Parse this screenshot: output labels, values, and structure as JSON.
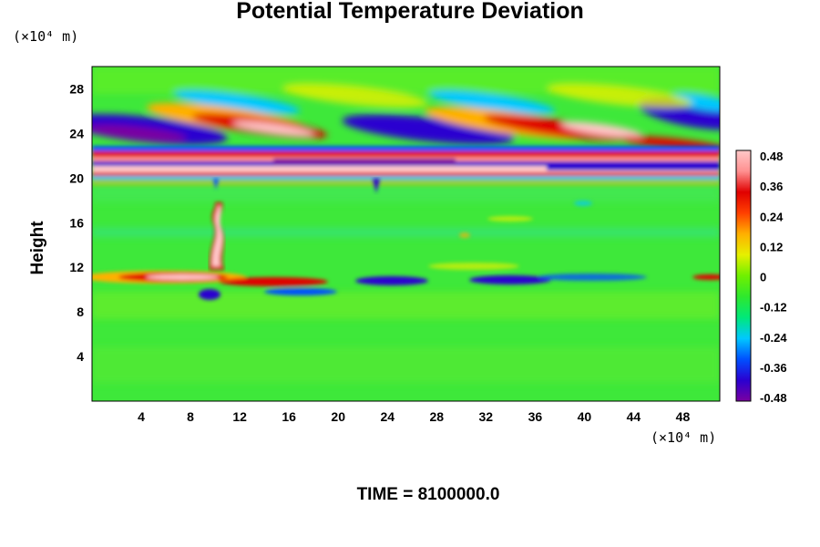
{
  "chart_data": {
    "type": "heatmap",
    "title": "Potential Temperature Deviation",
    "ylabel": "Height",
    "xlabel": "",
    "x_unit": "(×10⁴ m)",
    "y_unit": "(×10⁴ m)",
    "xlim": [
      0,
      51
    ],
    "ylim": [
      0,
      30
    ],
    "x_ticks": [
      "4",
      "8",
      "12",
      "16",
      "20",
      "24",
      "28",
      "32",
      "36",
      "40",
      "44",
      "48"
    ],
    "x_tick_values": [
      4,
      8,
      12,
      16,
      20,
      24,
      28,
      32,
      36,
      40,
      44,
      48
    ],
    "y_ticks": [
      "4",
      "8",
      "12",
      "16",
      "20",
      "24",
      "28"
    ],
    "y_tick_values": [
      4,
      8,
      12,
      16,
      20,
      24,
      28
    ],
    "colorbar": {
      "labels": [
        "0.48",
        "0.36",
        "0.24",
        "0.12",
        "0",
        "-0.12",
        "-0.24",
        "-0.36",
        "-0.48"
      ],
      "values": [
        0.48,
        0.36,
        0.24,
        0.12,
        0,
        -0.12,
        -0.24,
        -0.36,
        -0.48
      ],
      "range": [
        -0.48,
        0.48
      ],
      "colors": [
        "#7a00a0",
        "#2a00d0",
        "#0050ff",
        "#00c8ff",
        "#00e87a",
        "#2ee82e",
        "#70f000",
        "#e6f000",
        "#ffb000",
        "#ff4000",
        "#e00000",
        "#ff9090",
        "#ffc8c8"
      ]
    },
    "features": [
      {
        "name": "upper wave band",
        "y_range": [
          21,
          26
        ],
        "pattern": "tilted alternating positive/negative lobes",
        "value_range": [
          -0.48,
          0.48
        ]
      },
      {
        "name": "strong layer",
        "y_range": [
          20,
          22
        ],
        "value_range": [
          -0.48,
          0.48
        ]
      },
      {
        "name": "plume",
        "x_range": [
          9,
          11
        ],
        "y_range": [
          10,
          17.5
        ],
        "value": 0.48
      },
      {
        "name": "mid layer",
        "y_range": [
          10,
          12
        ],
        "value_range": [
          -0.4,
          0.48
        ]
      },
      {
        "name": "background",
        "value": 0.0
      }
    ],
    "grid": false
  },
  "footer": {
    "time_label": "TIME = 8100000.0"
  }
}
